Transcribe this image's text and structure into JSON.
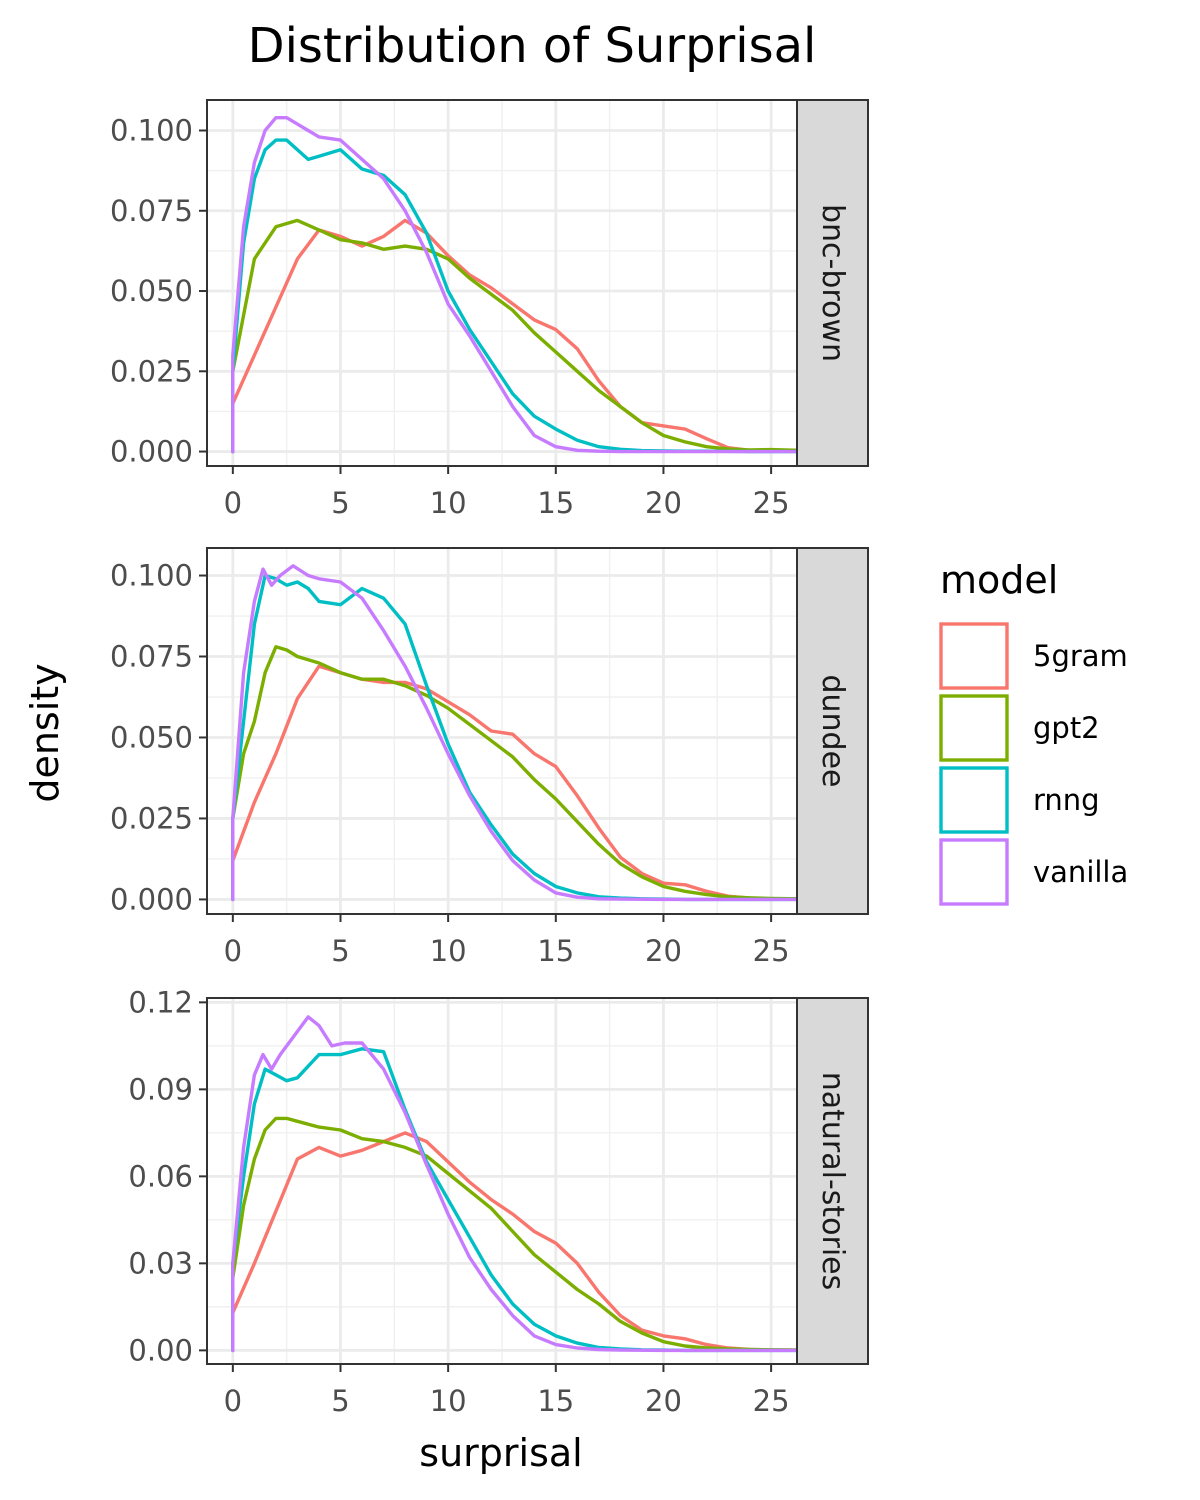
{
  "chart_data": {
    "type": "line",
    "title": "Distribution of Surprisal",
    "xlabel": "surprisal",
    "ylabel": "density",
    "xlim": [
      -1.2,
      29.5
    ],
    "x_ticks": [
      0,
      5,
      10,
      15,
      20,
      25
    ],
    "grid": true,
    "legend": {
      "title": "model",
      "position": "right",
      "entries": [
        "5gram",
        "gpt2",
        "rnng",
        "vanilla"
      ]
    },
    "colors": {
      "5gram": "#F8766D",
      "gpt2": "#7CAE00",
      "rnng": "#00BFC4",
      "vanilla": "#C77CFF"
    },
    "panels": [
      {
        "strip": "bnc-brown",
        "ylim": [
          -0.0045,
          0.1095
        ],
        "y_ticks": [
          0.0,
          0.025,
          0.05,
          0.075,
          0.1
        ],
        "y_tick_labels": [
          "0.000",
          "0.025",
          "0.050",
          "0.075",
          "0.100"
        ],
        "series": [
          {
            "name": "5gram",
            "x": [
              0,
              1,
              2,
              3,
              4,
              5,
              6,
              7,
              8,
              9,
              10,
              11,
              12,
              13,
              14,
              15,
              16,
              17,
              18,
              19,
              20,
              21,
              22,
              23,
              24,
              25,
              26.3
            ],
            "y": [
              0.015,
              0.03,
              0.045,
              0.06,
              0.069,
              0.067,
              0.064,
              0.067,
              0.072,
              0.068,
              0.061,
              0.055,
              0.051,
              0.046,
              0.041,
              0.038,
              0.032,
              0.022,
              0.014,
              0.009,
              0.008,
              0.007,
              0.004,
              0.0012,
              0.0004,
              0.0002,
              0.0001
            ]
          },
          {
            "name": "gpt2",
            "x": [
              0,
              1,
              2,
              3,
              4,
              5,
              6,
              7,
              8,
              9,
              10,
              11,
              12,
              13,
              14,
              15,
              16,
              17,
              18,
              19,
              20,
              21,
              22,
              23,
              24,
              25,
              26.3
            ],
            "y": [
              0.025,
              0.06,
              0.07,
              0.072,
              0.069,
              0.066,
              0.065,
              0.063,
              0.064,
              0.063,
              0.06,
              0.054,
              0.049,
              0.044,
              0.037,
              0.031,
              0.025,
              0.019,
              0.014,
              0.009,
              0.005,
              0.003,
              0.0015,
              0.0008,
              0.0005,
              0.0006,
              0.0004
            ]
          },
          {
            "name": "rnng",
            "x": [
              0,
              0.5,
              1,
              1.5,
              2,
              2.5,
              3,
              3.5,
              4,
              5,
              6,
              7,
              8,
              9,
              10,
              11,
              12,
              13,
              14,
              15,
              16,
              17,
              18,
              19,
              20,
              21,
              22,
              24,
              26.3
            ],
            "y": [
              0.025,
              0.065,
              0.085,
              0.094,
              0.097,
              0.097,
              0.094,
              0.091,
              0.092,
              0.094,
              0.088,
              0.086,
              0.08,
              0.068,
              0.05,
              0.038,
              0.028,
              0.018,
              0.011,
              0.007,
              0.0035,
              0.0015,
              0.0007,
              0.0003,
              0.0002,
              0.0001,
              0.0001,
              0.0,
              0.0
            ]
          },
          {
            "name": "vanilla",
            "x": [
              0,
              0.5,
              1,
              1.5,
              2,
              2.5,
              3,
              3.5,
              4,
              5,
              6,
              7,
              8,
              9,
              10,
              11,
              12,
              13,
              14,
              15,
              16,
              17,
              18,
              20,
              22,
              24,
              26.3
            ],
            "y": [
              0.03,
              0.07,
              0.09,
              0.1,
              0.104,
              0.104,
              0.102,
              0.1,
              0.098,
              0.097,
              0.091,
              0.085,
              0.075,
              0.062,
              0.046,
              0.036,
              0.025,
              0.014,
              0.005,
              0.0015,
              0.0004,
              0.0001,
              0.0,
              0.0,
              0.0,
              0.0,
              0.0
            ]
          }
        ]
      },
      {
        "strip": "dundee",
        "ylim": [
          -0.0045,
          0.1085
        ],
        "y_ticks": [
          0.0,
          0.025,
          0.05,
          0.075,
          0.1
        ],
        "y_tick_labels": [
          "0.000",
          "0.025",
          "0.050",
          "0.075",
          "0.100"
        ],
        "series": [
          {
            "name": "5gram",
            "x": [
              0,
              1,
              2,
              3,
              4,
              5,
              6,
              7,
              8,
              9,
              10,
              11,
              12,
              13,
              14,
              15,
              16,
              17,
              18,
              19,
              20,
              21,
              22,
              23,
              24,
              25,
              26.3
            ],
            "y": [
              0.012,
              0.03,
              0.045,
              0.062,
              0.072,
              0.07,
              0.068,
              0.067,
              0.067,
              0.065,
              0.061,
              0.057,
              0.052,
              0.051,
              0.045,
              0.041,
              0.032,
              0.022,
              0.013,
              0.008,
              0.005,
              0.0045,
              0.0025,
              0.001,
              0.0004,
              0.0002,
              0.0001
            ]
          },
          {
            "name": "gpt2",
            "x": [
              0,
              0.5,
              1,
              1.5,
              2,
              2.5,
              3,
              4,
              5,
              6,
              7,
              8,
              9,
              10,
              11,
              12,
              13,
              14,
              15,
              16,
              17,
              18,
              19,
              20,
              21,
              22,
              23,
              24,
              25,
              26.3
            ],
            "y": [
              0.025,
              0.045,
              0.055,
              0.07,
              0.078,
              0.077,
              0.075,
              0.073,
              0.07,
              0.068,
              0.068,
              0.066,
              0.063,
              0.059,
              0.054,
              0.049,
              0.044,
              0.037,
              0.031,
              0.024,
              0.017,
              0.011,
              0.007,
              0.004,
              0.0025,
              0.0015,
              0.0008,
              0.0005,
              0.0003,
              0.0002
            ]
          },
          {
            "name": "rnng",
            "x": [
              0,
              0.5,
              1,
              1.5,
              2,
              2.5,
              3,
              3.5,
              4,
              5,
              6,
              7,
              8,
              9,
              10,
              11,
              12,
              13,
              14,
              15,
              16,
              17,
              18,
              19,
              20,
              21,
              22,
              24,
              26.3
            ],
            "y": [
              0.025,
              0.055,
              0.085,
              0.1,
              0.099,
              0.097,
              0.098,
              0.096,
              0.092,
              0.091,
              0.096,
              0.093,
              0.085,
              0.066,
              0.048,
              0.033,
              0.023,
              0.014,
              0.008,
              0.004,
              0.002,
              0.0008,
              0.0004,
              0.0002,
              0.0001,
              0.0,
              0.0,
              0.0,
              0.0
            ]
          },
          {
            "name": "vanilla",
            "x": [
              0,
              0.5,
              1,
              1.4,
              1.8,
              2.2,
              2.8,
              3.5,
              4,
              5,
              6,
              7,
              8,
              9,
              10,
              11,
              12,
              13,
              14,
              15,
              16,
              17,
              18,
              20,
              22,
              24,
              26.3
            ],
            "y": [
              0.025,
              0.07,
              0.092,
              0.102,
              0.097,
              0.1,
              0.103,
              0.1,
              0.099,
              0.098,
              0.093,
              0.083,
              0.072,
              0.059,
              0.045,
              0.032,
              0.021,
              0.012,
              0.006,
              0.002,
              0.0007,
              0.0002,
              0.0001,
              0.0,
              0.0,
              0.0,
              0.0
            ]
          }
        ]
      },
      {
        "strip": "natural-stories",
        "ylim": [
          -0.0047,
          0.1215
        ],
        "y_ticks": [
          0.0,
          0.03,
          0.06,
          0.09,
          0.12
        ],
        "y_tick_labels": [
          "0.00",
          "0.03",
          "0.06",
          "0.09",
          "0.12"
        ],
        "series": [
          {
            "name": "5gram",
            "x": [
              0,
              1,
              2,
              3,
              4,
              5,
              6,
              7,
              8,
              9,
              10,
              11,
              12,
              13,
              14,
              15,
              16,
              17,
              18,
              19,
              20,
              21,
              22,
              23,
              24,
              25,
              26.3
            ],
            "y": [
              0.013,
              0.03,
              0.048,
              0.066,
              0.07,
              0.067,
              0.069,
              0.072,
              0.075,
              0.072,
              0.065,
              0.058,
              0.052,
              0.047,
              0.041,
              0.037,
              0.03,
              0.02,
              0.012,
              0.007,
              0.005,
              0.004,
              0.002,
              0.0008,
              0.0003,
              0.0002,
              0.0001
            ]
          },
          {
            "name": "gpt2",
            "x": [
              0,
              0.5,
              1,
              1.5,
              2,
              2.5,
              3,
              4,
              5,
              6,
              7,
              8,
              9,
              10,
              11,
              12,
              13,
              14,
              15,
              16,
              17,
              18,
              19,
              20,
              21,
              22,
              23,
              24,
              25,
              26.3
            ],
            "y": [
              0.025,
              0.05,
              0.066,
              0.076,
              0.08,
              0.08,
              0.079,
              0.077,
              0.076,
              0.073,
              0.072,
              0.07,
              0.067,
              0.061,
              0.055,
              0.049,
              0.041,
              0.033,
              0.027,
              0.021,
              0.016,
              0.01,
              0.006,
              0.003,
              0.0015,
              0.0008,
              0.0005,
              0.0003,
              0.0002,
              0.0001
            ]
          },
          {
            "name": "rnng",
            "x": [
              0,
              0.5,
              1,
              1.5,
              2,
              2.5,
              3,
              3.5,
              4,
              5,
              6,
              7,
              8,
              9,
              10,
              11,
              12,
              13,
              14,
              15,
              16,
              17,
              18,
              19,
              20,
              21,
              22,
              24,
              26.3
            ],
            "y": [
              0.03,
              0.06,
              0.085,
              0.097,
              0.095,
              0.093,
              0.094,
              0.098,
              0.102,
              0.102,
              0.104,
              0.103,
              0.083,
              0.065,
              0.052,
              0.039,
              0.026,
              0.016,
              0.009,
              0.005,
              0.0025,
              0.001,
              0.0005,
              0.0002,
              0.0001,
              0.0,
              0.0,
              0.0,
              0.0
            ]
          },
          {
            "name": "vanilla",
            "x": [
              0,
              0.5,
              1,
              1.4,
              1.8,
              2.2,
              2.8,
              3.5,
              4,
              4.6,
              5.2,
              6,
              7,
              8,
              9,
              10,
              11,
              12,
              13,
              14,
              15,
              16,
              17,
              18,
              20,
              22,
              26.3
            ],
            "y": [
              0.03,
              0.07,
              0.095,
              0.102,
              0.097,
              0.102,
              0.108,
              0.115,
              0.112,
              0.105,
              0.106,
              0.106,
              0.097,
              0.082,
              0.064,
              0.047,
              0.032,
              0.021,
              0.012,
              0.005,
              0.002,
              0.0008,
              0.0003,
              0.0001,
              0.0,
              0.0,
              0.0
            ]
          }
        ]
      }
    ]
  }
}
